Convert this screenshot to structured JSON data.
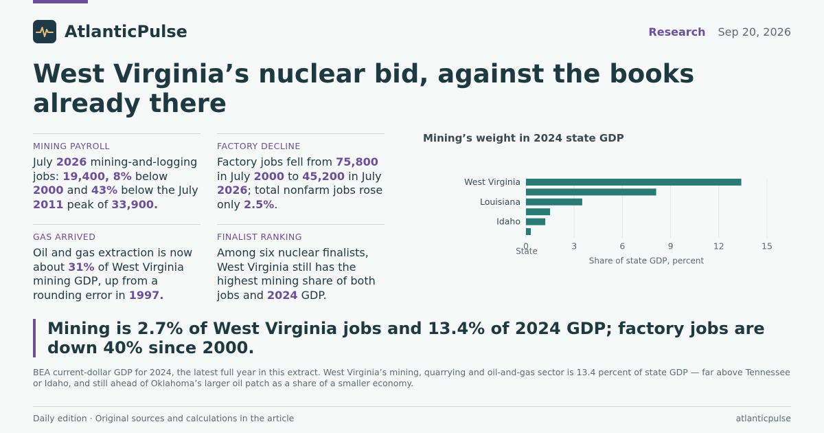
{
  "brand": {
    "name": "AtlanticPulse"
  },
  "header": {
    "section": "Research",
    "date": "Sep 20, 2026"
  },
  "headline": "West Virginia’s nuclear bid, against the books already there",
  "facts": [
    {
      "label": "MINING PAYROLL",
      "parts": [
        {
          "t": "July "
        },
        {
          "t": "2026",
          "h": true
        },
        {
          "t": " mining-and-logging jobs: "
        },
        {
          "t": "19,400, 8%",
          "h": true
        },
        {
          "t": " below "
        },
        {
          "t": "2000",
          "h": true
        },
        {
          "t": " and "
        },
        {
          "t": "43%",
          "h": true
        },
        {
          "t": " below the July "
        },
        {
          "t": "2011",
          "h": true
        },
        {
          "t": " peak of "
        },
        {
          "t": "33,900.",
          "h": true
        }
      ]
    },
    {
      "label": "FACTORY DECLINE",
      "parts": [
        {
          "t": "Factory jobs fell from "
        },
        {
          "t": "75,800",
          "h": true
        },
        {
          "t": " in July "
        },
        {
          "t": "2000",
          "h": true
        },
        {
          "t": " to "
        },
        {
          "t": "45,200",
          "h": true
        },
        {
          "t": " in July "
        },
        {
          "t": "2026",
          "h": true
        },
        {
          "t": "; total nonfarm jobs rose only "
        },
        {
          "t": "2.5%",
          "h": true
        },
        {
          "t": "."
        }
      ]
    },
    {
      "label": "GAS ARRIVED",
      "parts": [
        {
          "t": "Oil and gas extraction is now about "
        },
        {
          "t": "31%",
          "h": true
        },
        {
          "t": " of West Virginia mining GDP, up from a rounding error in "
        },
        {
          "t": "1997.",
          "h": true
        }
      ]
    },
    {
      "label": "FINALIST RANKING",
      "parts": [
        {
          "t": "Among six nuclear finalists, West Virginia still has the highest mining share of both jobs and "
        },
        {
          "t": "2024",
          "h": true
        },
        {
          "t": " GDP."
        }
      ]
    }
  ],
  "chart_data": {
    "type": "bar",
    "orientation": "horizontal",
    "title": "Mining’s weight in 2024 state GDP",
    "categories": [
      "West Virginia",
      "",
      "Louisiana",
      "",
      "Idaho",
      ""
    ],
    "values": [
      13.4,
      8.1,
      3.5,
      1.5,
      1.2,
      0.3
    ],
    "xlabel": "Share of state GDP, percent",
    "ylabel": "State",
    "xlim": [
      0,
      15
    ],
    "xticks": [
      0,
      3,
      6,
      9,
      12,
      15
    ],
    "grid": true,
    "bar_color": "#2a7b74"
  },
  "quote": "Mining is 2.7% of West Virginia jobs and 13.4% of 2024 GDP; factory jobs are down 40% since 2000.",
  "note": "BEA current-dollar GDP for 2024, the latest full year in this extract. West Virginia’s mining, quarrying and oil-and-gas sector is 13.4 percent of state GDP — far above Tennessee or Idaho, and still ahead of Oklahoma’s larger oil patch as a share of a smaller economy.",
  "footer": {
    "left": "Daily edition · Original sources and calculations in the article",
    "right": "atlanticpulse"
  },
  "colors": {
    "accent": "#6b4f9a",
    "ink": "#1e3a41",
    "logo_bg": "#1e3a48",
    "logo_line": "#e8c27a"
  }
}
